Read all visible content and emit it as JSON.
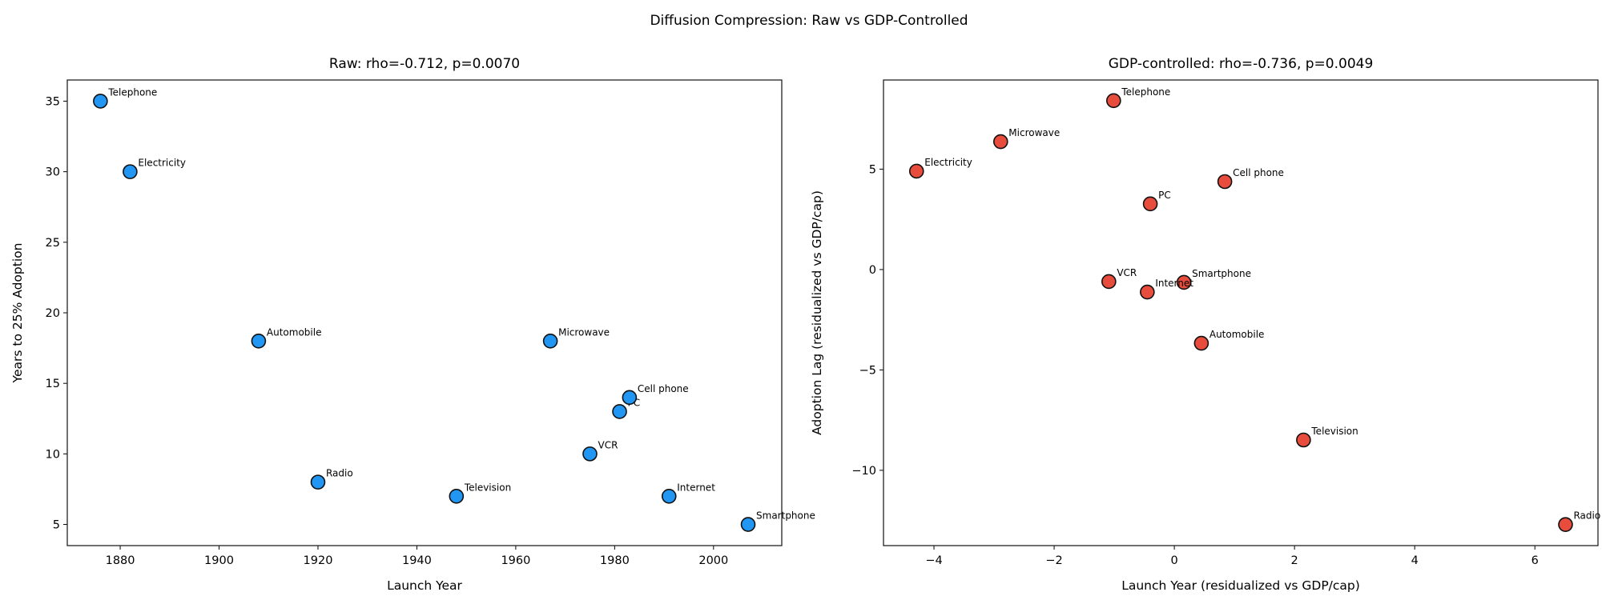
{
  "figure": {
    "suptitle": "Diffusion Compression: Raw vs GDP-Controlled"
  },
  "chart_data": [
    {
      "type": "scatter",
      "title": "Raw: rho=-0.712, p=0.0070",
      "xlabel": "Launch Year",
      "ylabel": "Years to 25% Adoption",
      "xlim": [
        1869.3,
        2013.8
      ],
      "ylim": [
        3.5,
        36.5
      ],
      "xticks": [
        1880,
        1900,
        1920,
        1940,
        1960,
        1980,
        2000
      ],
      "yticks": [
        5,
        10,
        15,
        20,
        25,
        30,
        35
      ],
      "grid": false,
      "marker_color": "#2196F3",
      "points": [
        {
          "label": "Telephone",
          "x": 1876,
          "y": 35
        },
        {
          "label": "Electricity",
          "x": 1882,
          "y": 30
        },
        {
          "label": "Automobile",
          "x": 1908,
          "y": 18
        },
        {
          "label": "Radio",
          "x": 1920,
          "y": 8
        },
        {
          "label": "Television",
          "x": 1948,
          "y": 7
        },
        {
          "label": "Microwave",
          "x": 1967,
          "y": 18
        },
        {
          "label": "VCR",
          "x": 1975,
          "y": 10
        },
        {
          "label": "PC",
          "x": 1981,
          "y": 13
        },
        {
          "label": "Cell phone",
          "x": 1983,
          "y": 14
        },
        {
          "label": "Internet",
          "x": 1991,
          "y": 7
        },
        {
          "label": "Smartphone",
          "x": 2007,
          "y": 5
        }
      ]
    },
    {
      "type": "scatter",
      "title": "GDP-controlled: rho=-0.736, p=0.0049",
      "xlabel": "Launch Year (residualized vs GDP/cap)",
      "ylabel": "Adoption Lag (residualized vs GDP/cap)",
      "xlim": [
        -4.84,
        7.05
      ],
      "ylim": [
        -13.75,
        9.44
      ],
      "xticks": [
        -4,
        -2,
        0,
        2,
        4,
        6
      ],
      "yticks": [
        -10,
        -5,
        0,
        5
      ],
      "grid": false,
      "marker_color": "#E74C3C",
      "points": [
        {
          "label": "Telephone",
          "x": -1.01,
          "y": 8.41
        },
        {
          "label": "Microwave",
          "x": -2.89,
          "y": 6.37
        },
        {
          "label": "Electricity",
          "x": -4.29,
          "y": 4.9
        },
        {
          "label": "Cell phone",
          "x": 0.84,
          "y": 4.38
        },
        {
          "label": "PC",
          "x": -0.4,
          "y": 3.27
        },
        {
          "label": "VCR",
          "x": -1.09,
          "y": -0.6
        },
        {
          "label": "Smartphone",
          "x": 0.16,
          "y": -0.64
        },
        {
          "label": "Internet",
          "x": -0.45,
          "y": -1.12
        },
        {
          "label": "Automobile",
          "x": 0.45,
          "y": -3.67
        },
        {
          "label": "Television",
          "x": 2.15,
          "y": -8.49
        },
        {
          "label": "Radio",
          "x": 6.51,
          "y": -12.7
        }
      ]
    }
  ]
}
